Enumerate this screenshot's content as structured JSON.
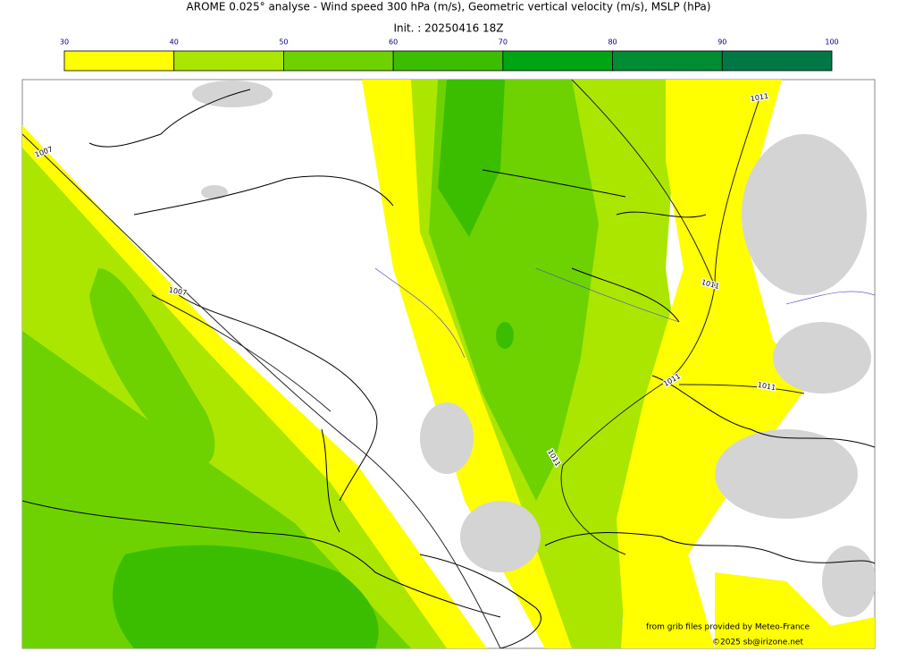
{
  "header": {
    "title": "AROME 0.025° analyse - Wind speed 300 hPa (m/s), Geometric vertical velocity (m/s), MSLP (hPa)",
    "subtitle": "Init. : 20250416 18Z"
  },
  "colorbar": {
    "ticks": [
      30,
      40,
      50,
      60,
      70,
      80,
      90,
      100
    ],
    "colors": [
      "#ffff00",
      "#aae600",
      "#6ed200",
      "#3cbe00",
      "#00a514",
      "#008c32",
      "#007846"
    ],
    "tick_color": "#000080"
  },
  "map": {
    "isobar_labels": [
      "1007",
      "1007",
      "1011",
      "1011",
      "1011",
      "1011",
      "1011"
    ]
  },
  "credits": [
    "from grib files provided by Meteo-France",
    "©2025 sb@irizone.net"
  ]
}
